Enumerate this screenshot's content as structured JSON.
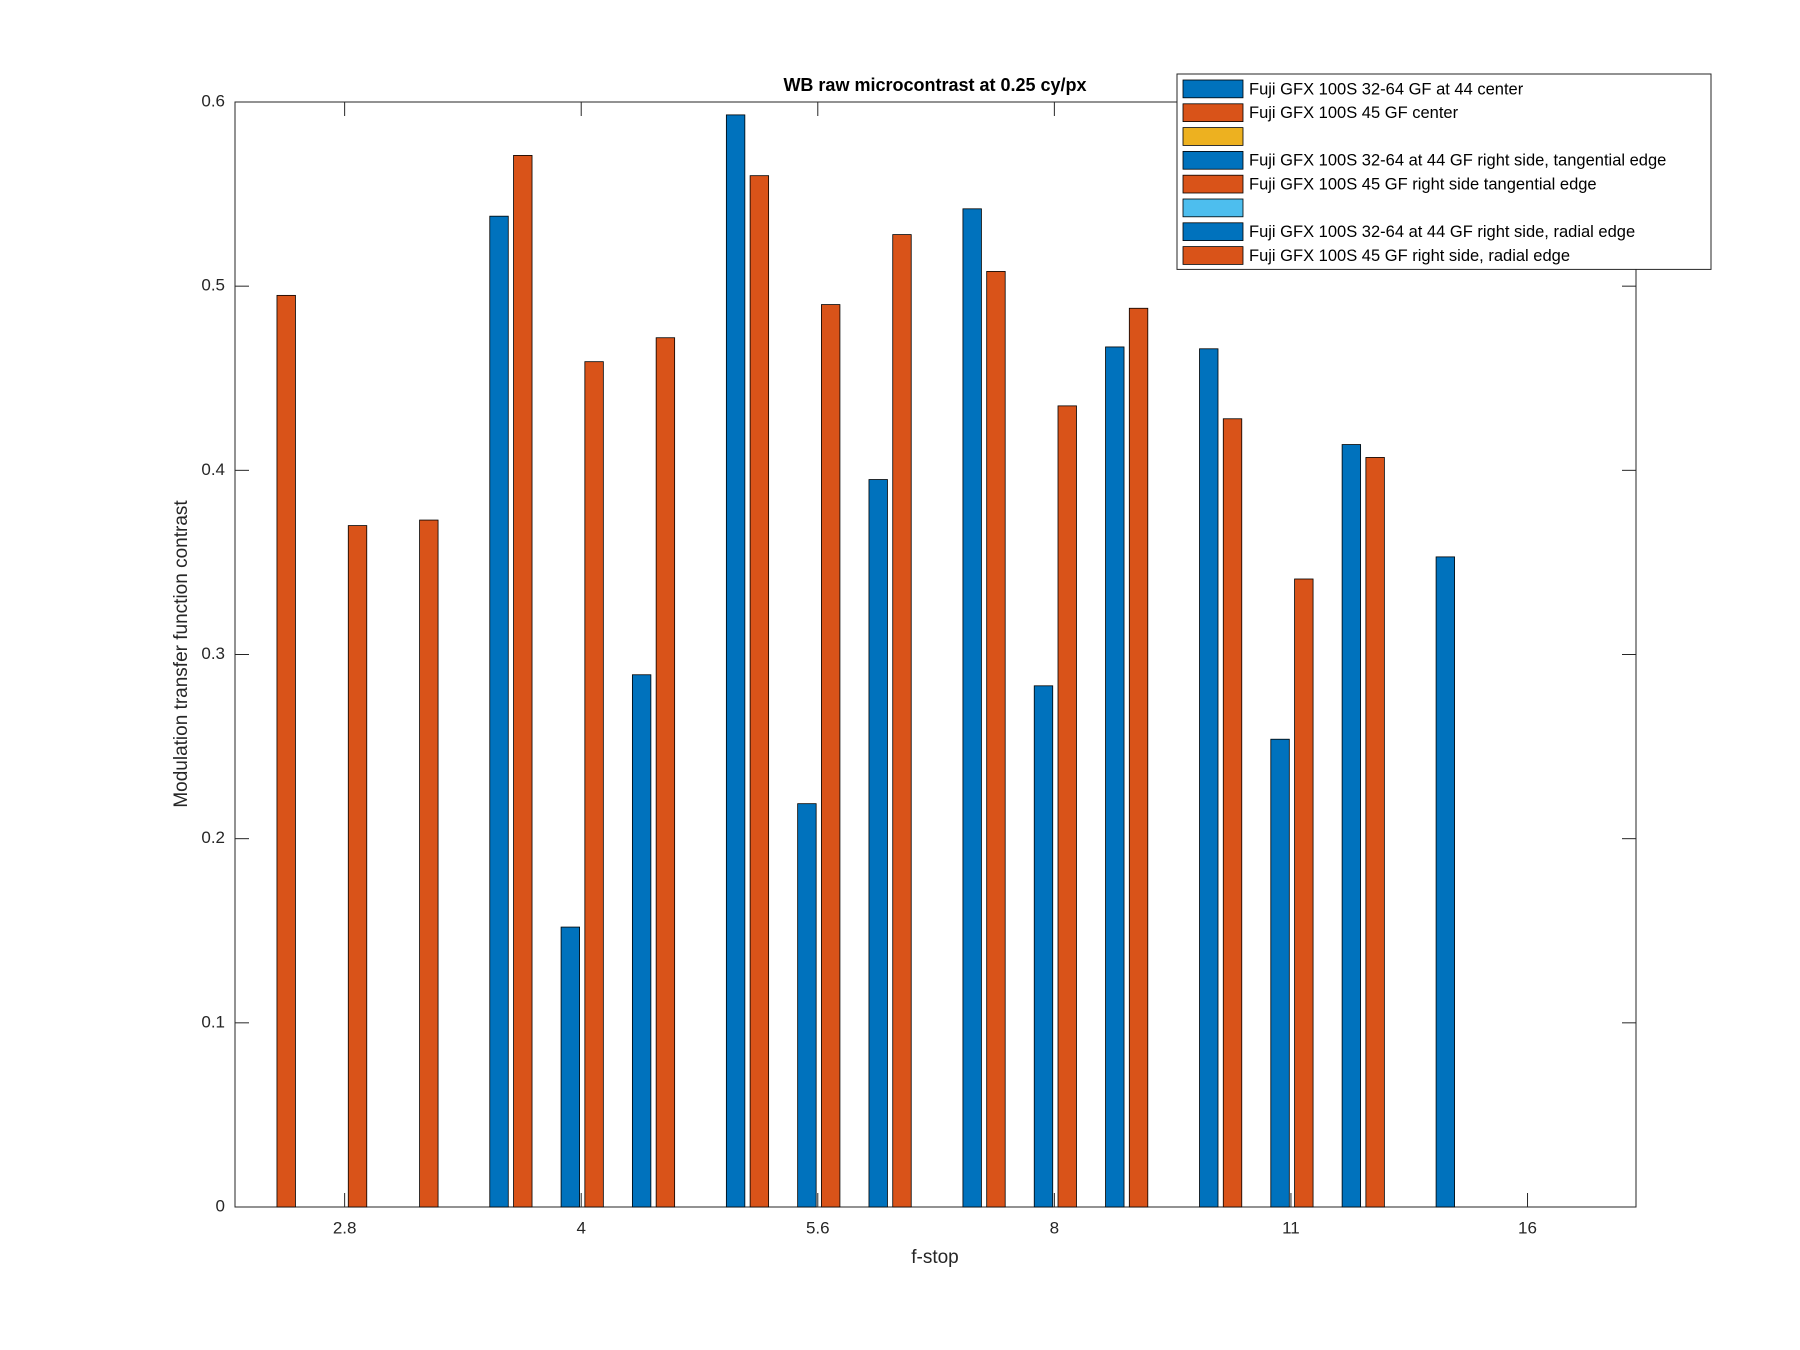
{
  "chart_data": {
    "type": "bar",
    "title": "WB raw  microcontrast at 0.25 cy/px",
    "x_label": "f-stop",
    "y_label": "Modulation transfer function contrast",
    "categories": [
      "2.8",
      "4",
      "5.6",
      "8",
      "11",
      "16"
    ],
    "series": [
      {
        "name": "Fuji GFX 100S 32-64 GF at 44 center",
        "color": "#0072bd",
        "values": [
          0,
          0.538,
          0.593,
          0.542,
          0.466,
          0.353
        ]
      },
      {
        "name": "Fuji GFX 100S 45 GF center",
        "color": "#d95319",
        "values": [
          0.495,
          0.571,
          0.56,
          0.508,
          0.428,
          0
        ]
      },
      {
        "color": "#edb120",
        "values": [
          0,
          0,
          0,
          0,
          0,
          0
        ]
      },
      {
        "name": "Fuji GFX 100S 32-64 at 44 GF right side, tangential edge",
        "color": "#0072bd",
        "values": [
          0,
          0.152,
          0.219,
          0.283,
          0.254,
          0
        ]
      },
      {
        "name": "Fuji GFX 100S 45 GF right side tangential edge",
        "color": "#d95319",
        "values": [
          0.37,
          0.459,
          0.49,
          0.435,
          0.341,
          0
        ]
      },
      {
        "color": "#4dbeee",
        "values": [
          0,
          0,
          0,
          0,
          0,
          0
        ]
      },
      {
        "name": "Fuji GFX 100S 32-64 at 44 GF right side, radial edge",
        "color": "#0072bd",
        "values": [
          0,
          0.289,
          0.395,
          0.467,
          0.414,
          0
        ]
      },
      {
        "name": "Fuji GFX 100S 45 GF right side, radial edge",
        "color": "#d95319",
        "values": [
          0.373,
          0.472,
          0.528,
          0.488,
          0.407,
          0
        ]
      }
    ],
    "ylim": [
      0,
      0.6
    ],
    "yticks": [
      0,
      0.1,
      0.2,
      0.3,
      0.4,
      0.5,
      0.6
    ],
    "grid": false,
    "legend": "northeast"
  }
}
